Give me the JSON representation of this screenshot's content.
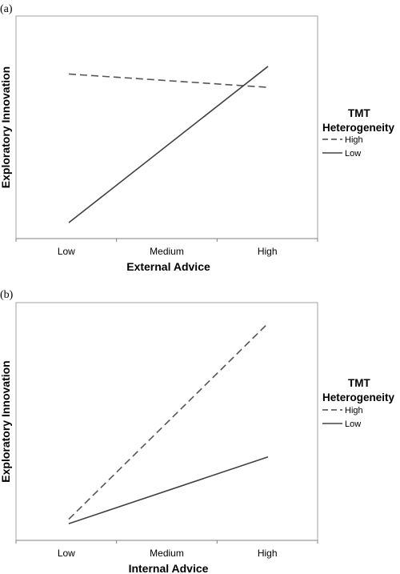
{
  "chart_data": [
    {
      "type": "line",
      "panel_label": "(a)",
      "title": "",
      "xlabel": "External Advice",
      "ylabel": "Exploratory Innovation",
      "categories": [
        "Low",
        "Medium",
        "High"
      ],
      "x": [
        0,
        2
      ],
      "ylim": [
        0,
        1
      ],
      "grid": false,
      "legend": {
        "title_lines": [
          "TMT",
          "Heterogeneity"
        ],
        "placement": "right",
        "entries": [
          {
            "label": "High",
            "style": "dashed"
          },
          {
            "label": "Low",
            "style": "solid"
          }
        ]
      },
      "series": [
        {
          "name": "High",
          "style": "dashed",
          "color": "#555555",
          "values": [
            0.83,
            0.76
          ]
        },
        {
          "name": "Low",
          "style": "solid",
          "color": "#404040",
          "values": [
            0.05,
            0.87
          ]
        }
      ]
    },
    {
      "type": "line",
      "panel_label": "(b)",
      "title": "",
      "xlabel": "Internal Advice",
      "ylabel": "Exploratory Innovation",
      "categories": [
        "Low",
        "Medium",
        "High"
      ],
      "x": [
        0,
        2
      ],
      "ylim": [
        0,
        1
      ],
      "grid": false,
      "legend": {
        "title_lines": [
          "TMT",
          "Heterogeneity"
        ],
        "placement": "right",
        "entries": [
          {
            "label": "High",
            "style": "dashed"
          },
          {
            "label": "Low",
            "style": "solid"
          }
        ]
      },
      "series": [
        {
          "name": "High",
          "style": "dashed",
          "color": "#555555",
          "values": [
            0.07,
            0.95
          ]
        },
        {
          "name": "Low",
          "style": "solid",
          "color": "#404040",
          "values": [
            0.05,
            0.35
          ]
        }
      ]
    }
  ]
}
